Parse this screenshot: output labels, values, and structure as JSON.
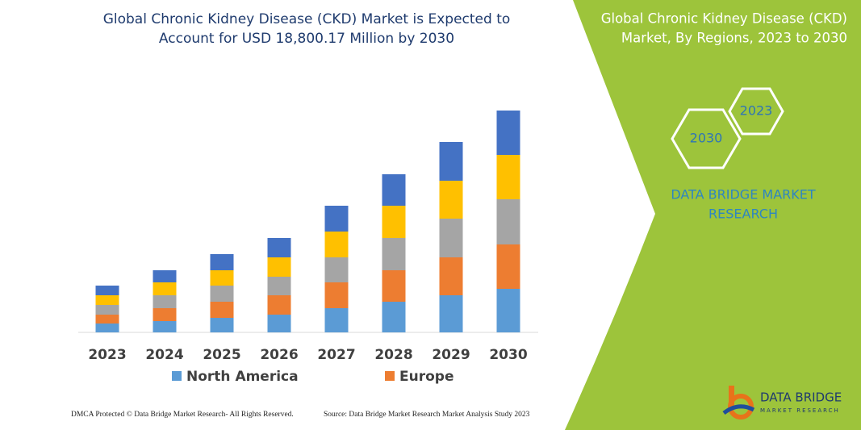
{
  "chart_data": {
    "type": "stacked-bar",
    "title": [
      "Global Chronic Kidney Disease (CKD) Market is Expected to",
      "Account for USD 18,800.17 Million by 2030"
    ],
    "categories": [
      "2023",
      "2024",
      "2025",
      "2026",
      "2027",
      "2028",
      "2029",
      "2030"
    ],
    "series": [
      {
        "name": "North America",
        "color": "#5b9bd5",
        "values": [
          11,
          14,
          18,
          22,
          30,
          38,
          46,
          54
        ]
      },
      {
        "name": "Europe",
        "color": "#ed7d31",
        "values": [
          11,
          16,
          20,
          24,
          32,
          39,
          47,
          55
        ]
      },
      {
        "color": "#a5a5a5",
        "values": [
          12,
          16,
          20,
          23,
          31,
          40,
          48,
          56
        ]
      },
      {
        "color": "#ffc000",
        "values": [
          12,
          16,
          19,
          24,
          32,
          40,
          47,
          55
        ]
      },
      {
        "color": "#4472c4",
        "values": [
          12,
          15,
          20,
          24,
          32,
          39,
          48,
          55
        ]
      }
    ],
    "ylim": [
      0,
      275
    ]
  },
  "panel": {
    "title": [
      "Global Chronic Kidney Disease (CKD)",
      "Market, By Regions, 2023 to 2030"
    ],
    "hexagons": [
      "2030",
      "2023"
    ],
    "brand": [
      "DATA BRIDGE MARKET",
      "RESEARCH"
    ]
  },
  "logo": {
    "name": "DATA BRIDGE",
    "tagline": "MARKET RESEARCH"
  },
  "footer": {
    "left": "DMCA Protected © Data Bridge Market Research- All Rights Reserved.",
    "right": "Source: Data Bridge Market Research Market Analysis Study 2023"
  }
}
